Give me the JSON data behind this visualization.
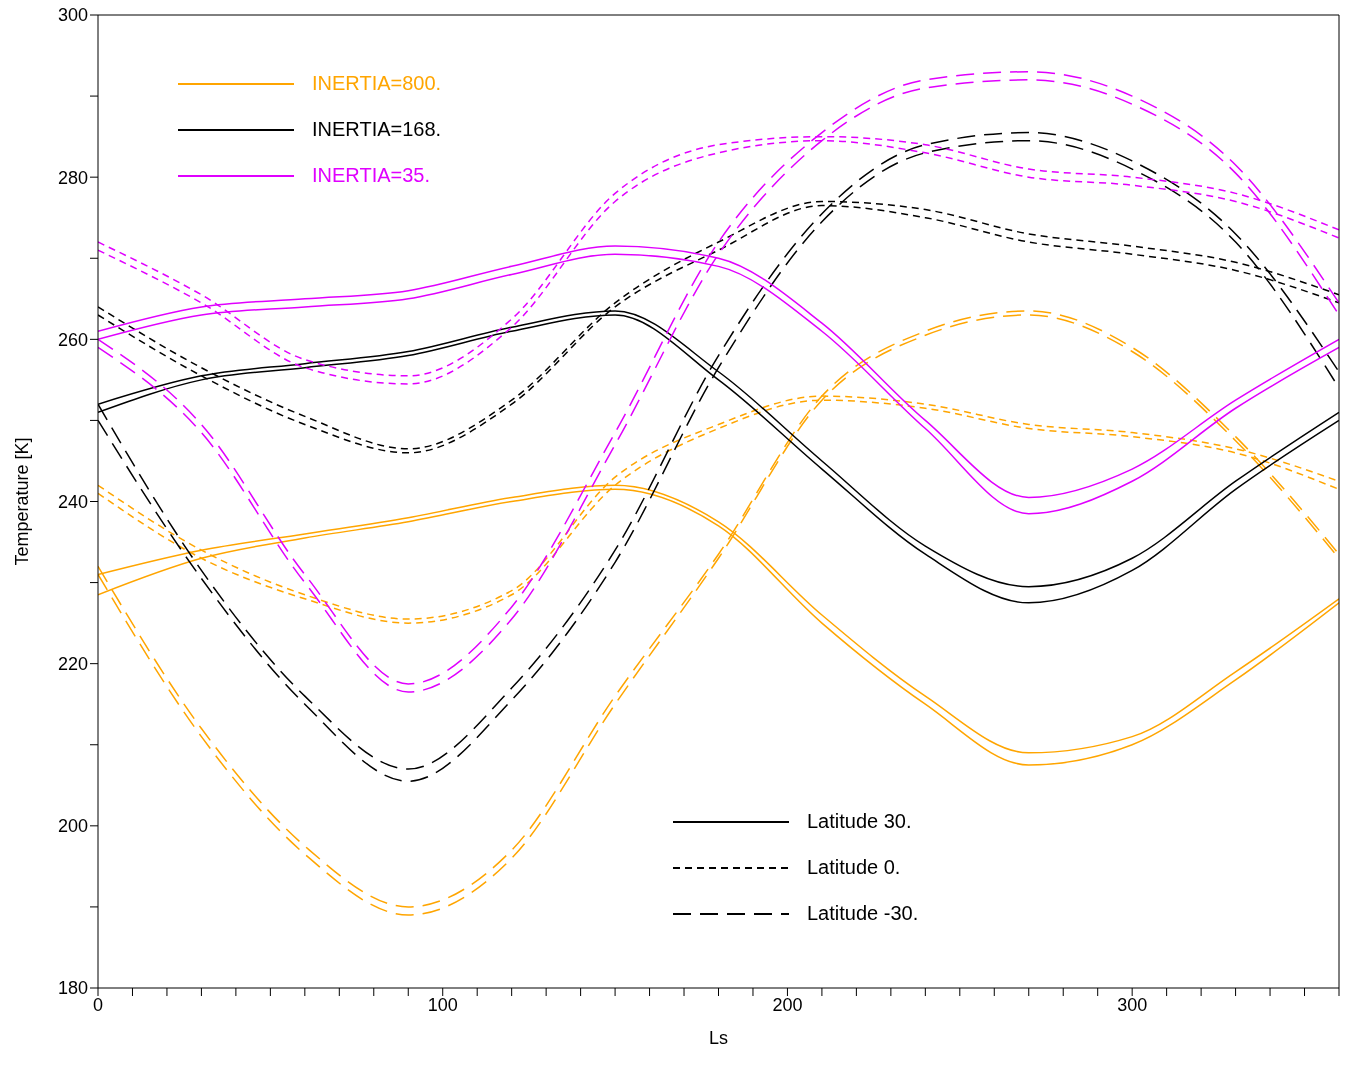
{
  "chart_data": {
    "type": "line",
    "xlabel": "Ls",
    "ylabel": "Temperature [K]",
    "x": [
      0,
      30,
      60,
      90,
      120,
      150,
      180,
      210,
      240,
      270,
      300,
      330,
      360
    ],
    "xlim": [
      0,
      360
    ],
    "ylim": [
      180,
      300
    ],
    "xticks": [
      0,
      {
        "value": 10,
        "label": null
      },
      {
        "value": 20,
        "label": null
      },
      {
        "value": 30,
        "label": null
      },
      {
        "value": 40,
        "label": null
      },
      {
        "value": 50,
        "label": null
      },
      {
        "value": 60,
        "label": null
      },
      {
        "value": 70,
        "label": null
      },
      {
        "value": 80,
        "label": null
      },
      {
        "value": 90,
        "label": null
      },
      100,
      {
        "value": 110,
        "label": null
      },
      {
        "value": 120,
        "label": null
      },
      {
        "value": 130,
        "label": null
      },
      {
        "value": 140,
        "label": null
      },
      {
        "value": 150,
        "label": null
      },
      {
        "value": 160,
        "label": null
      },
      {
        "value": 170,
        "label": null
      },
      {
        "value": 180,
        "label": null
      },
      {
        "value": 190,
        "label": null
      },
      200,
      {
        "value": 210,
        "label": null
      },
      {
        "value": 220,
        "label": null
      },
      {
        "value": 230,
        "label": null
      },
      {
        "value": 240,
        "label": null
      },
      {
        "value": 250,
        "label": null
      },
      {
        "value": 260,
        "label": null
      },
      {
        "value": 270,
        "label": null
      },
      {
        "value": 280,
        "label": null
      },
      {
        "value": 290,
        "label": null
      },
      300,
      {
        "value": 310,
        "label": null
      },
      {
        "value": 320,
        "label": null
      },
      {
        "value": 330,
        "label": null
      },
      {
        "value": 340,
        "label": null
      },
      {
        "value": 350,
        "label": null
      },
      {
        "value": 360,
        "label": null
      }
    ],
    "yticks": [
      180,
      {
        "value": 190,
        "label": null
      },
      200,
      {
        "value": 210,
        "label": null
      },
      220,
      {
        "value": 230,
        "label": null
      },
      240,
      {
        "value": 250,
        "label": null
      },
      260,
      {
        "value": 270,
        "label": null
      },
      280,
      {
        "value": 290,
        "label": null
      },
      300
    ],
    "grid": false,
    "legend": false,
    "marker": "none",
    "annotations": [
      "INERTIA=800.",
      "INERTIA=168.",
      "INERTIA=35.",
      "Latitude 30.",
      "Latitude 0.",
      "Latitude -30."
    ],
    "series": [
      {
        "color": "#ffa500",
        "line_style": "solid",
        "values": [
          231,
          234,
          236,
          238,
          240.5,
          242,
          237.5,
          226,
          216,
          209,
          211,
          219,
          228
        ]
      },
      {
        "color": "#ffa500",
        "line_style": "solid",
        "values": [
          228.5,
          233,
          235.5,
          237.5,
          240,
          241.5,
          237,
          225,
          215,
          207.5,
          210,
          218,
          227.5
        ]
      },
      {
        "color": "#ffa500",
        "line_style": "dotted",
        "values": [
          242,
          234,
          228.5,
          225.5,
          229,
          243,
          249.5,
          253,
          252,
          249.5,
          248.5,
          246.5,
          242.5
        ]
      },
      {
        "color": "#ffa500",
        "line_style": "dotted",
        "values": [
          241,
          233,
          228,
          225,
          228.5,
          242,
          249,
          252.5,
          251.5,
          249,
          248,
          246,
          241.5
        ]
      },
      {
        "color": "#ffa500",
        "line_style": "dashed",
        "values": [
          232,
          212,
          197.5,
          190,
          197,
          216,
          233.5,
          253,
          261,
          263.5,
          259,
          248,
          233.5
        ]
      },
      {
        "color": "#ffa500",
        "line_style": "dashed",
        "values": [
          231,
          211,
          196.5,
          189,
          196,
          215,
          233,
          252.5,
          260.5,
          263,
          258.5,
          247.5,
          233
        ]
      },
      {
        "color": "#000000",
        "line_style": "solid",
        "values": [
          252,
          255.5,
          257,
          258.5,
          261.5,
          263.5,
          256,
          245,
          234.5,
          229.5,
          233,
          242.5,
          251
        ]
      },
      {
        "color": "#000000",
        "line_style": "solid",
        "values": [
          251,
          255,
          256.5,
          258,
          261,
          263,
          255,
          244,
          233.5,
          227.5,
          231.5,
          241.5,
          250
        ]
      },
      {
        "color": "#000000",
        "line_style": "dotted",
        "values": [
          264,
          256.5,
          250.5,
          246.5,
          252.5,
          264.5,
          272,
          277,
          276,
          273,
          271.5,
          269.5,
          265.5
        ]
      },
      {
        "color": "#000000",
        "line_style": "dotted",
        "values": [
          263,
          255.5,
          249.5,
          246,
          252,
          264,
          271,
          276.5,
          275,
          272,
          270.5,
          268.5,
          264.5
        ]
      },
      {
        "color": "#000000",
        "line_style": "dashed",
        "values": [
          252,
          231.5,
          216,
          207,
          217,
          234,
          258,
          275.5,
          284,
          285.5,
          282,
          273,
          256
        ]
      },
      {
        "color": "#000000",
        "line_style": "dashed",
        "values": [
          250,
          230.5,
          215,
          205.5,
          215.5,
          232.5,
          256.5,
          274.5,
          283,
          284.5,
          281,
          272,
          254
        ]
      },
      {
        "color": "#e000ff",
        "line_style": "solid",
        "values": [
          261,
          264,
          265,
          266,
          269,
          271.5,
          270,
          262,
          250,
          240.5,
          244,
          252.5,
          260
        ]
      },
      {
        "color": "#e000ff",
        "line_style": "solid",
        "values": [
          260,
          263,
          264,
          265,
          268,
          270.5,
          269,
          261,
          249,
          238.5,
          242.5,
          251.5,
          259
        ]
      },
      {
        "color": "#e000ff",
        "line_style": "dotted",
        "values": [
          272,
          265.5,
          257.5,
          255.5,
          262.5,
          278,
          284,
          285,
          284,
          281,
          280,
          278,
          273.5
        ]
      },
      {
        "color": "#e000ff",
        "line_style": "dotted",
        "values": [
          271,
          264.5,
          256.5,
          254.5,
          261.5,
          277,
          283,
          284.5,
          283,
          280,
          279,
          277,
          272.5
        ]
      },
      {
        "color": "#e000ff",
        "line_style": "dashed",
        "values": [
          260,
          249.5,
          231,
          217.5,
          227,
          248.5,
          272,
          285.5,
          292,
          293,
          290,
          281.5,
          264.5
        ]
      },
      {
        "color": "#e000ff",
        "line_style": "dashed",
        "values": [
          259,
          248.5,
          230,
          216.5,
          225.5,
          247,
          270.5,
          284.5,
          291,
          292,
          289,
          280.5,
          263
        ]
      }
    ]
  }
}
